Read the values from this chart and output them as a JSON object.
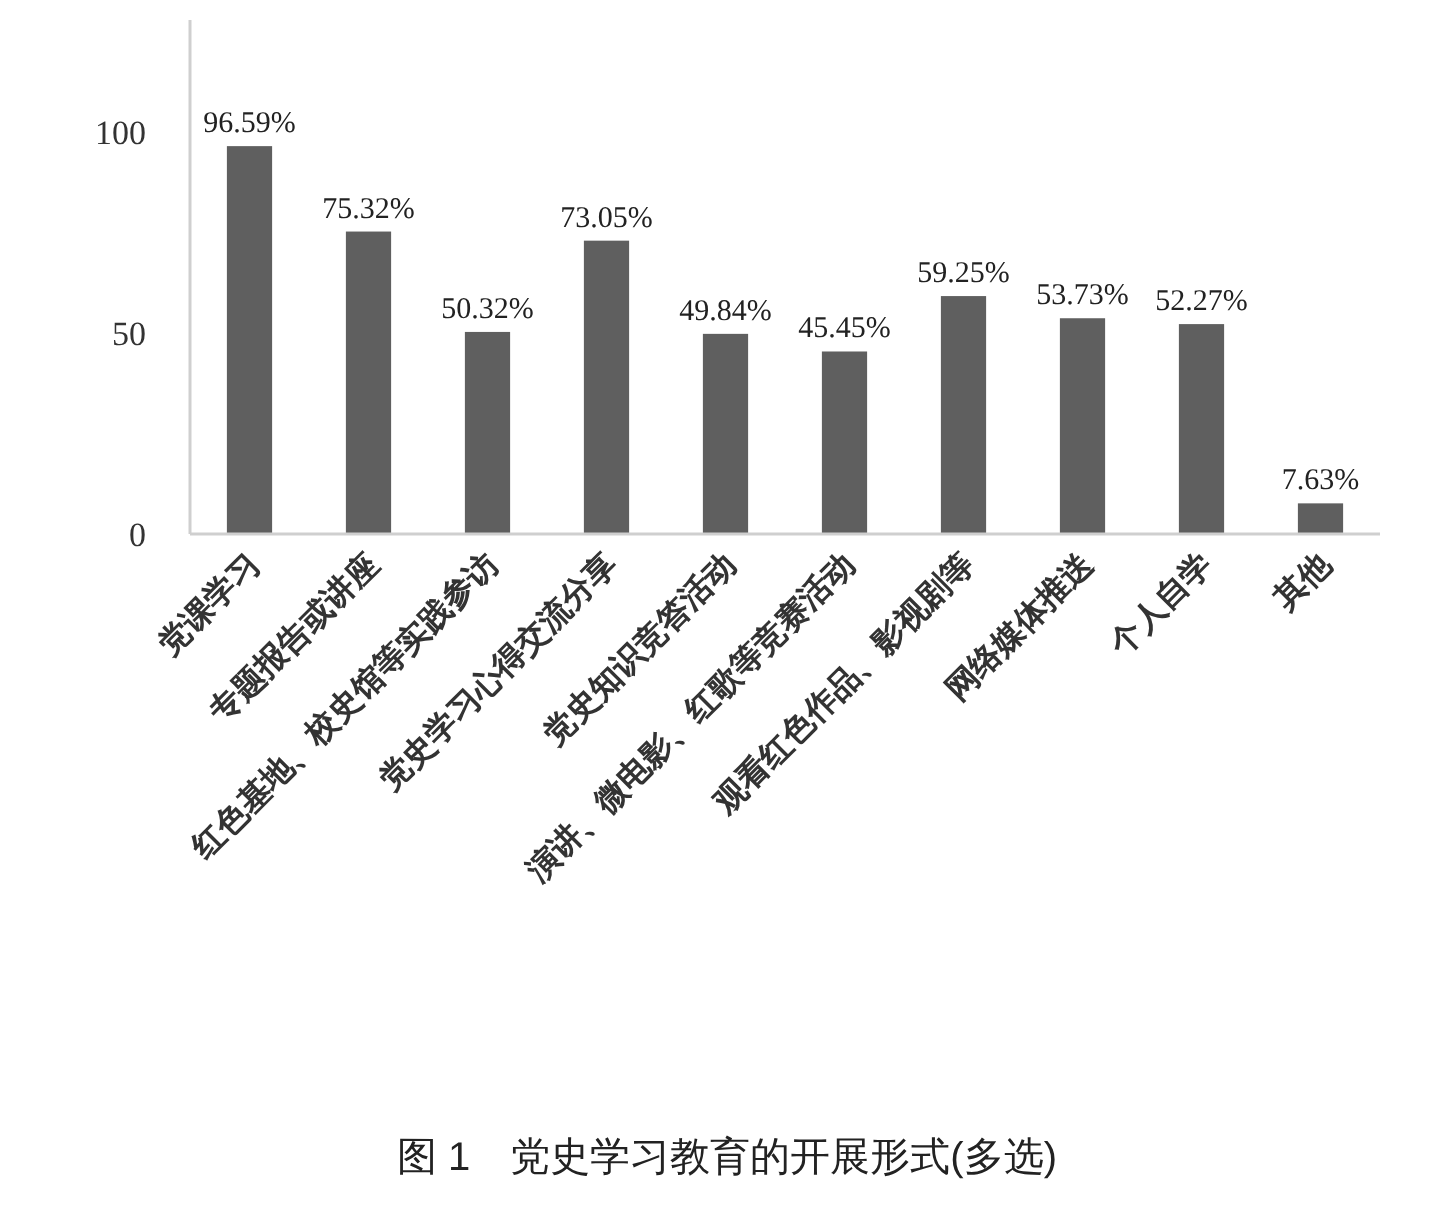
{
  "chart_data": {
    "type": "bar",
    "title": "图 1　党史学习教育的开展形式(多选)",
    "categories": [
      "党课学习",
      "专题报告或讲座",
      "红色基地、校史馆等实践参访",
      "党史学习心得交流分享",
      "党史知识竞答活动",
      "演讲、微电影、红歌等竞赛活动",
      "观看红色作品、影视剧等",
      "网络媒体推送",
      "个人自学",
      "其他"
    ],
    "values": [
      96.59,
      75.32,
      50.32,
      73.05,
      49.84,
      45.45,
      59.25,
      53.73,
      52.27,
      7.63
    ],
    "value_labels": [
      "96.59%",
      "75.32%",
      "50.32%",
      "73.05%",
      "49.84%",
      "45.45%",
      "59.25%",
      "53.73%",
      "52.27%",
      "7.63%"
    ],
    "color": "#5f5f5f",
    "ylim": [
      0,
      128
    ],
    "yticks": [
      0,
      50,
      100
    ],
    "grid": false
  }
}
